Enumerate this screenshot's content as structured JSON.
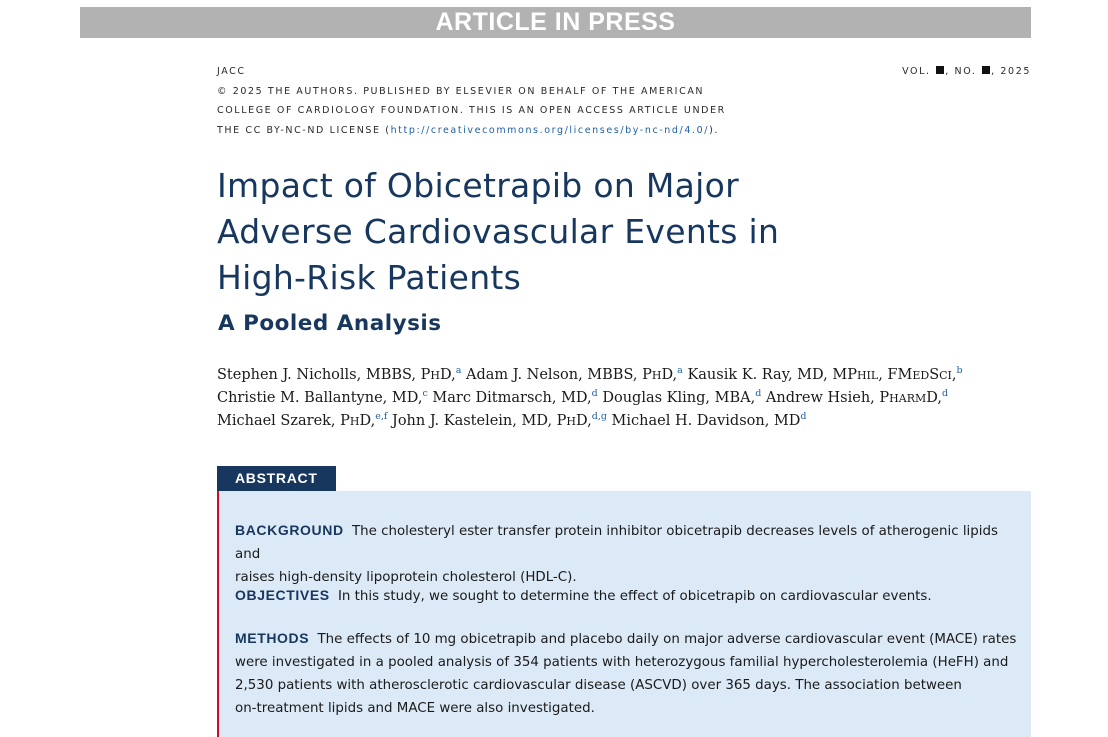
{
  "banner": "ARTICLE IN PRESS",
  "journal": {
    "name": "JACC",
    "copyright_line1": "© 2025 THE AUTHORS. PUBLISHED BY ELSEVIER ON BEHALF OF THE AMERICAN",
    "copyright_line2": "COLLEGE OF CARDIOLOGY FOUNDATION. THIS IS AN OPEN ACCESS ARTICLE UNDER",
    "copyright_line3_pre": "THE CC BY-NC-ND LICENSE (",
    "license_url": "http://creativecommons.org/licenses/by-nc-nd/4.0/",
    "copyright_line3_post": ").",
    "vol_label": "VOL.",
    "no_label": ", NO.",
    "year": ", 2025"
  },
  "title_lines": [
    "Impact of Obicetrapib on Major",
    "Adverse Cardiovascular Events in",
    "High-Risk Patients"
  ],
  "subtitle": "A Pooled Analysis",
  "authors": [
    {
      "name": "Stephen J. Nicholls, MBBS, P",
      "degree_sc": "H",
      "tail": "D,",
      "sup": "a"
    },
    {
      "name": " Adam J. Nelson, MBBS, P",
      "degree_sc": "H",
      "tail": "D,",
      "sup": "a"
    },
    {
      "name": " Kausik K. Ray, MD, MP",
      "degree_sc": "HIL",
      "tail": ", FM",
      "degree_sc2": "ED",
      "tail2": "S",
      "degree_sc3": "CI",
      "tail3": ",",
      "sup": "b"
    },
    {
      "name": "Christie M. Ballantyne, MD,",
      "sup": "c"
    },
    {
      "name": " Marc Ditmarsch, MD,",
      "sup": "d"
    },
    {
      "name": " Douglas Kling, MBA,",
      "sup": "d"
    },
    {
      "name": " Andrew Hsieh, P",
      "degree_sc": "HARM",
      "tail": "D,",
      "sup": "d"
    },
    {
      "name": "Michael Szarek, P",
      "degree_sc": "H",
      "tail": "D,",
      "sup": "e,f"
    },
    {
      "name": " John J. Kastelein, MD, P",
      "degree_sc": "H",
      "tail": "D,",
      "sup": "d,g"
    },
    {
      "name": " Michael H. Davidson, MD",
      "sup": "d"
    }
  ],
  "abstract": {
    "tab_label": "ABSTRACT",
    "background_head": "BACKGROUND",
    "background_text1": "The cholesteryl ester transfer protein inhibitor obicetrapib decreases levels of atherogenic lipids and",
    "background_text2": "raises high-density lipoprotein cholesterol (HDL-C).",
    "objectives_head": "OBJECTIVES",
    "objectives_text": "In this study, we sought to determine the effect of obicetrapib on cardiovascular events.",
    "methods_head": "METHODS",
    "methods_text1": "The effects of 10 mg obicetrapib and placebo daily on major adverse cardiovascular event (MACE) rates",
    "methods_text2": "were investigated in a pooled analysis of 354 patients with heterozygous familial hypercholesterolemia (HeFH) and",
    "methods_text3": "2,530 patients with atherosclerotic cardiovascular disease (ASCVD) over 365 days. The association between",
    "methods_text4": "on-treatment lipids and MACE were also investigated."
  }
}
